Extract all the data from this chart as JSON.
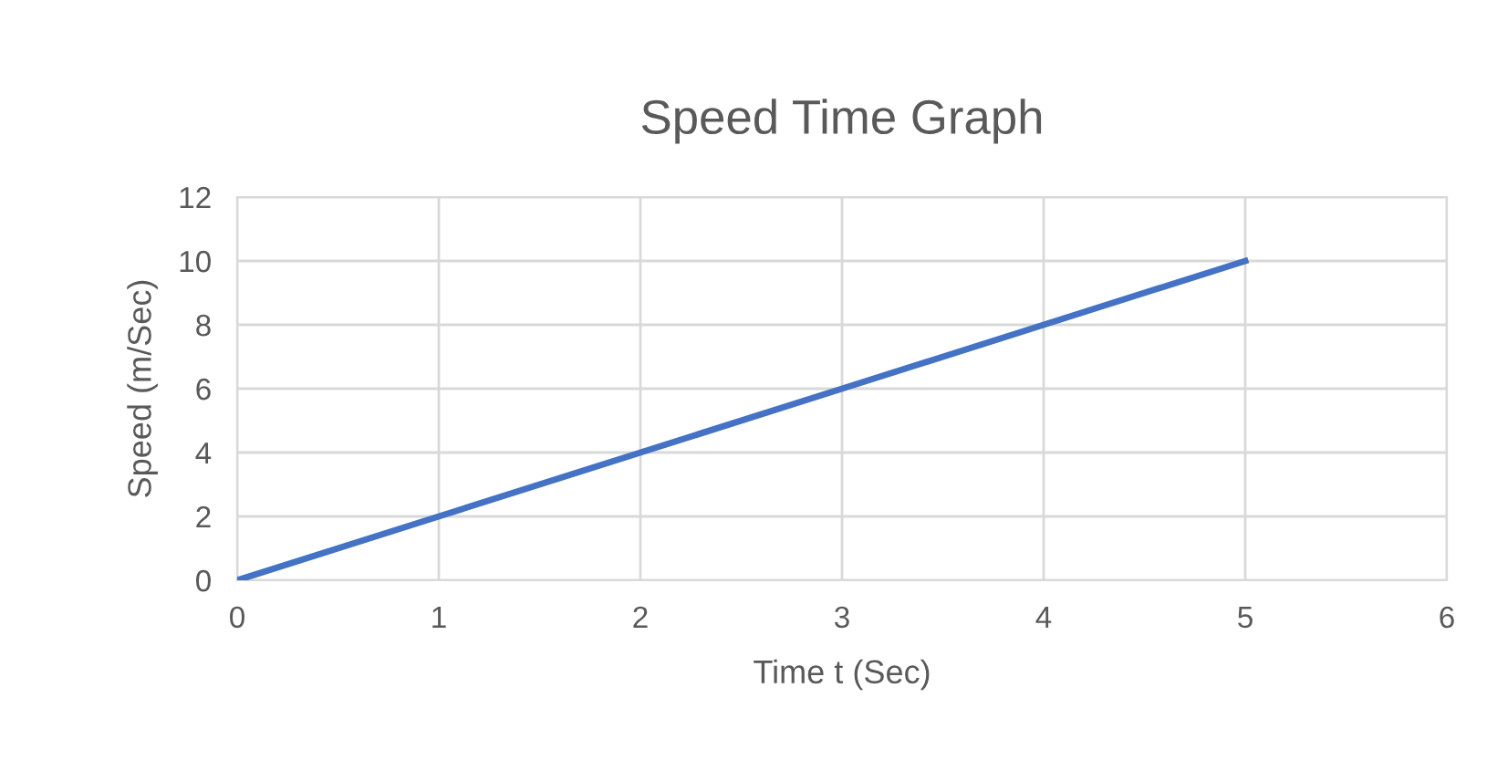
{
  "chart_data": {
    "type": "line",
    "title": "Speed Time Graph",
    "xlabel": "Time t (Sec)",
    "ylabel": "Speed (m/Sec)",
    "x": [
      0,
      1,
      2,
      3,
      4,
      5
    ],
    "series": [
      {
        "color": "#4472c4",
        "values": [
          0,
          2,
          4,
          6,
          8,
          10
        ]
      }
    ],
    "xlim": [
      0,
      6
    ],
    "xticks": [
      0,
      1,
      2,
      3,
      4,
      5,
      6
    ],
    "ylim": [
      0,
      12
    ],
    "yticks": [
      0,
      2,
      4,
      6,
      8,
      10,
      12
    ],
    "grid": true,
    "marker": "none",
    "line_style": "solid"
  }
}
